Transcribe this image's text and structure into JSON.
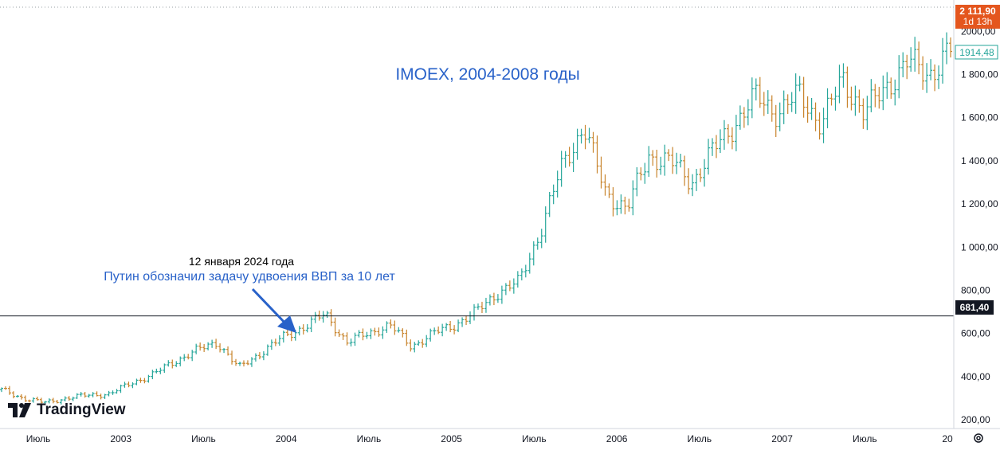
{
  "chart_data": {
    "type": "candlestick",
    "title": "IMOEX, 2004-2008 годы",
    "ylim": [
      160,
      2145
    ],
    "y_ticks": [
      "200,00",
      "400,00",
      "600,00",
      "800,00",
      "1 000,00",
      "1 200,00",
      "1 400,00",
      "1 600,00",
      "1 800,00",
      "2000,00"
    ],
    "x_labels": [
      "Июль",
      "2003",
      "Июль",
      "2004",
      "Июль",
      "2005",
      "Июль",
      "2006",
      "Июль",
      "2007",
      "Июль",
      "20"
    ],
    "x": [
      "2002-05",
      "2002-07",
      "2002-09",
      "2002-11",
      "2003-01",
      "2003-03",
      "2003-05",
      "2003-07",
      "2003-09",
      "2003-11",
      "2004-01",
      "2004-03",
      "2004-04",
      "2004-05",
      "2004-07",
      "2004-09",
      "2004-10",
      "2004-11",
      "2005-01",
      "2005-03",
      "2005-05",
      "2005-07",
      "2005-08",
      "2005-09",
      "2005-10",
      "2005-12",
      "2006-02",
      "2006-04",
      "2006-05",
      "2006-06",
      "2006-07",
      "2006-08",
      "2006-10",
      "2006-11",
      "2006-12",
      "2007-02",
      "2007-04",
      "2007-05",
      "2007-06",
      "2007-07",
      "2007-09",
      "2007-10",
      "2007-11",
      "2007-12",
      "2008-01"
    ],
    "series": [
      {
        "values": [
          340,
          300,
          280,
          300,
          315,
          320,
          370,
          410,
          470,
          520,
          560,
          440,
          510,
          580,
          630,
          690,
          560,
          600,
          640,
          540,
          600,
          640,
          700,
          790,
          840,
          1080,
          1380,
          1560,
          1250,
          1180,
          1420,
          1400,
          1300,
          1450,
          1570,
          1700,
          1620,
          1710,
          1570,
          1780,
          1620,
          1740,
          1860,
          1800,
          1914.48
        ]
      }
    ],
    "price_label_top": "2 111,90",
    "price_label_top_sub": "1d 13h",
    "price_label_current": "1914,48",
    "horizontal_line_label": "681,40",
    "horizontal_line_value": 681.4,
    "dotted_line_value": 2111.9,
    "annotation_date": "12 января 2024 года",
    "annotation_text": "Путин обозначил задачу удвоения ВВП за 10 лет",
    "colors": {
      "up": "#26a69a",
      "down": "#c8842c",
      "title": "#2962c9",
      "top_label_bg": "#e4561e",
      "current_label_border": "#26a69a"
    }
  },
  "brand": {
    "name": "TradingView"
  },
  "icons": {
    "settings": "settings-icon",
    "logo": "tradingview-logo-icon"
  }
}
